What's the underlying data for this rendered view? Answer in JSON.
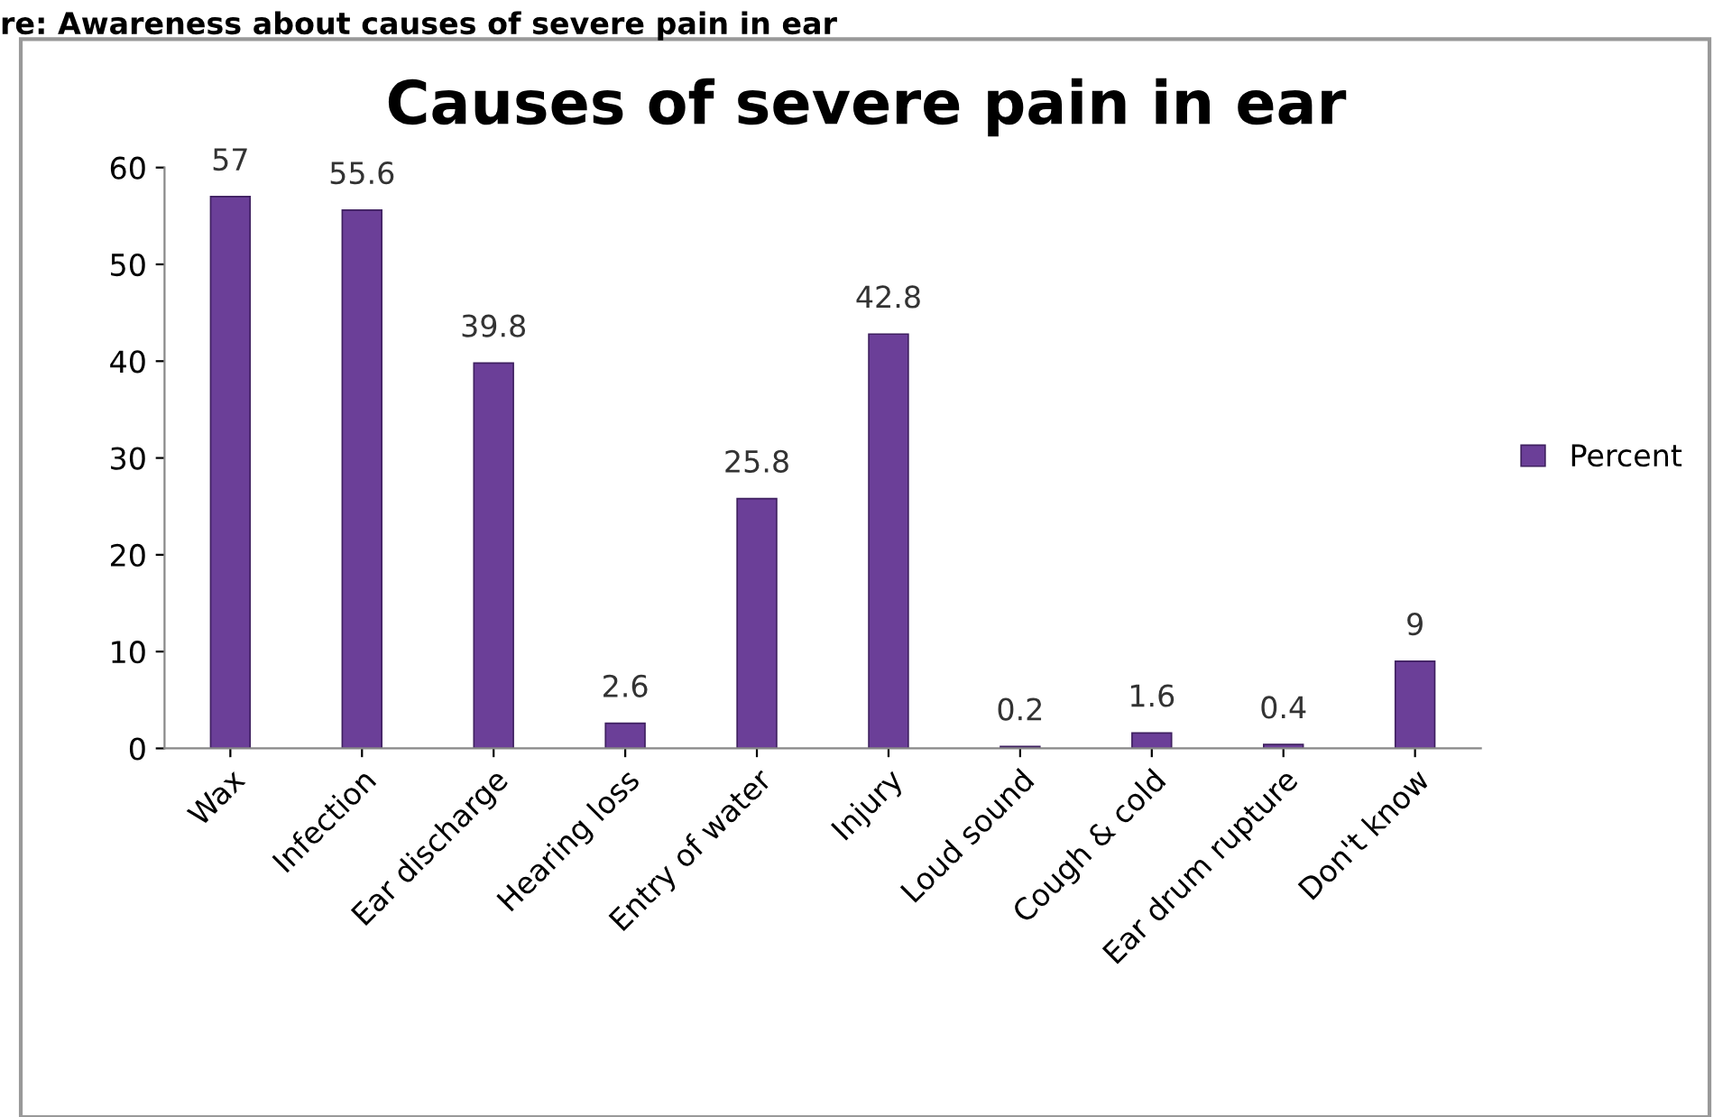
{
  "chart_data": {
    "type": "bar",
    "title": "Causes of severe pain in ear",
    "annotations": [
      "re: Awareness about causes of severe pain in ear"
    ],
    "categories": [
      "Wax",
      "Infection",
      "Ear discharge",
      "Hearing loss",
      "Entry of water",
      "Injury",
      "Loud sound",
      "Cough & cold",
      "Ear drum rupture",
      "Don't know"
    ],
    "series": [
      {
        "name": "Percent",
        "color": "#6b3f98",
        "values": [
          57,
          55.6,
          39.8,
          2.6,
          25.8,
          42.8,
          0.2,
          1.6,
          0.4,
          9
        ]
      }
    ],
    "ylim": [
      0,
      60
    ],
    "yticks": [
      0,
      10,
      20,
      30,
      40,
      50,
      60
    ],
    "grid": false,
    "legend": "right",
    "data_labels": true
  }
}
